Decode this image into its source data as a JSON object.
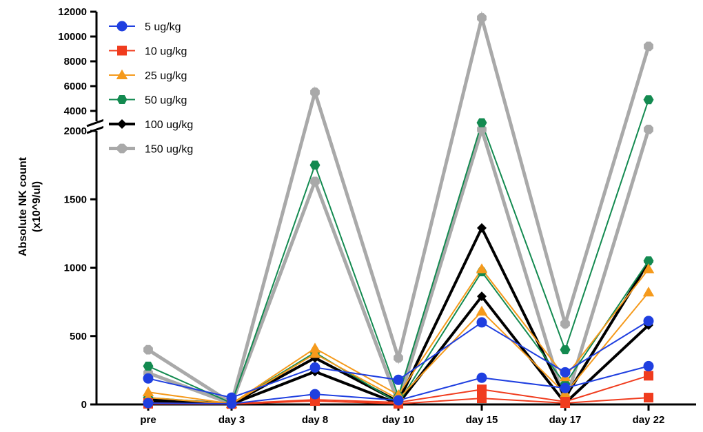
{
  "chart_data": {
    "type": "line",
    "title": "",
    "ylabel_line1": "Absolute NK count",
    "ylabel_line2": "(x10^9/ul)",
    "xlabel": "",
    "categories": [
      "pre",
      "day 3",
      "day 8",
      "day 10",
      "day 15",
      "day 17",
      "day 22"
    ],
    "y_axis": {
      "type": "broken",
      "lower_range": [
        0,
        2000
      ],
      "lower_ticks": [
        "0",
        "500",
        "1000",
        "1500",
        "2000"
      ],
      "upper_range": [
        4000,
        12000
      ],
      "upper_ticks": [
        "4000",
        "6000",
        "8000",
        "10000",
        "12000"
      ]
    },
    "legend_position": "top-left",
    "series": [
      {
        "name": "5 ug/kg",
        "color": "#1f3fe0",
        "marker": "circle",
        "subjects": [
          [
            190,
            50,
            270,
            180,
            600,
            235,
            610
          ],
          [
            10,
            5,
            75,
            30,
            195,
            120,
            280
          ]
        ]
      },
      {
        "name": "10 ug/kg",
        "color": "#f03c1e",
        "marker": "square",
        "subjects": [
          [
            10,
            5,
            35,
            15,
            110,
            20,
            210
          ],
          [
            5,
            3,
            25,
            5,
            45,
            10,
            50
          ]
        ]
      },
      {
        "name": "25 ug/kg",
        "color": "#f59a1c",
        "marker": "triangle",
        "subjects": [
          [
            90,
            5,
            410,
            70,
            990,
            200,
            990
          ],
          [
            50,
            3,
            370,
            40,
            680,
            80,
            820
          ]
        ]
      },
      {
        "name": "50 ug/kg",
        "color": "#138a50",
        "marker": "hexagon",
        "subjects": [
          [
            280,
            10,
            1750,
            60,
            3700,
            400,
            4900
          ],
          [
            50,
            5,
            380,
            10,
            970,
            150,
            1050
          ]
        ]
      },
      {
        "name": "100 ug/kg",
        "color": "#000000",
        "marker": "diamond",
        "subjects": [
          [
            40,
            5,
            340,
            20,
            1290,
            50,
            1040
          ],
          [
            20,
            3,
            240,
            5,
            790,
            10,
            580
          ]
        ]
      },
      {
        "name": "150 ug/kg",
        "color": "#a9a9a9",
        "marker": "octagon",
        "subjects": [
          [
            400,
            10,
            5500,
            340,
            11500,
            590,
            9200
          ],
          [
            230,
            5,
            1630,
            10,
            2300,
            10,
            2300
          ]
        ]
      }
    ]
  }
}
